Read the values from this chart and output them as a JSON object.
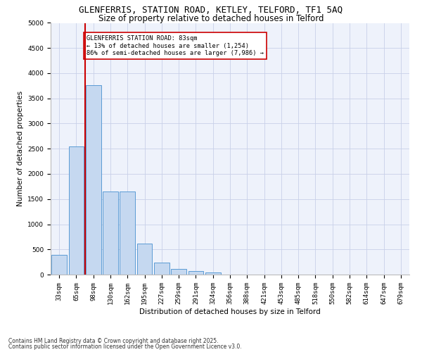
{
  "title1": "GLENFERRIS, STATION ROAD, KETLEY, TELFORD, TF1 5AQ",
  "title2": "Size of property relative to detached houses in Telford",
  "xlabel": "Distribution of detached houses by size in Telford",
  "ylabel": "Number of detached properties",
  "categories": [
    "33sqm",
    "65sqm",
    "98sqm",
    "130sqm",
    "162sqm",
    "195sqm",
    "227sqm",
    "259sqm",
    "291sqm",
    "324sqm",
    "356sqm",
    "388sqm",
    "421sqm",
    "453sqm",
    "485sqm",
    "518sqm",
    "550sqm",
    "582sqm",
    "614sqm",
    "647sqm",
    "679sqm"
  ],
  "values": [
    390,
    2540,
    3760,
    1650,
    1650,
    620,
    240,
    105,
    65,
    35,
    0,
    0,
    0,
    0,
    0,
    0,
    0,
    0,
    0,
    0,
    0
  ],
  "bar_color": "#c5d8f0",
  "bar_edge_color": "#5b9bd5",
  "vline_x": 1.5,
  "vline_color": "#cc0000",
  "annotation_text": "GLENFERRIS STATION ROAD: 83sqm\n← 13% of detached houses are smaller (1,254)\n86% of semi-detached houses are larger (7,986) →",
  "annotation_box_color": "#ffffff",
  "annotation_box_edge": "#cc0000",
  "ylim": [
    0,
    5000
  ],
  "yticks": [
    0,
    500,
    1000,
    1500,
    2000,
    2500,
    3000,
    3500,
    4000,
    4500,
    5000
  ],
  "footer1": "Contains HM Land Registry data © Crown copyright and database right 2025.",
  "footer2": "Contains public sector information licensed under the Open Government Licence v3.0.",
  "bg_color": "#eef2fb",
  "plot_bg_color": "#eef2fb",
  "title_fontsize": 9,
  "subtitle_fontsize": 8.5,
  "tick_fontsize": 6.5,
  "label_fontsize": 7.5,
  "footer_fontsize": 5.5
}
